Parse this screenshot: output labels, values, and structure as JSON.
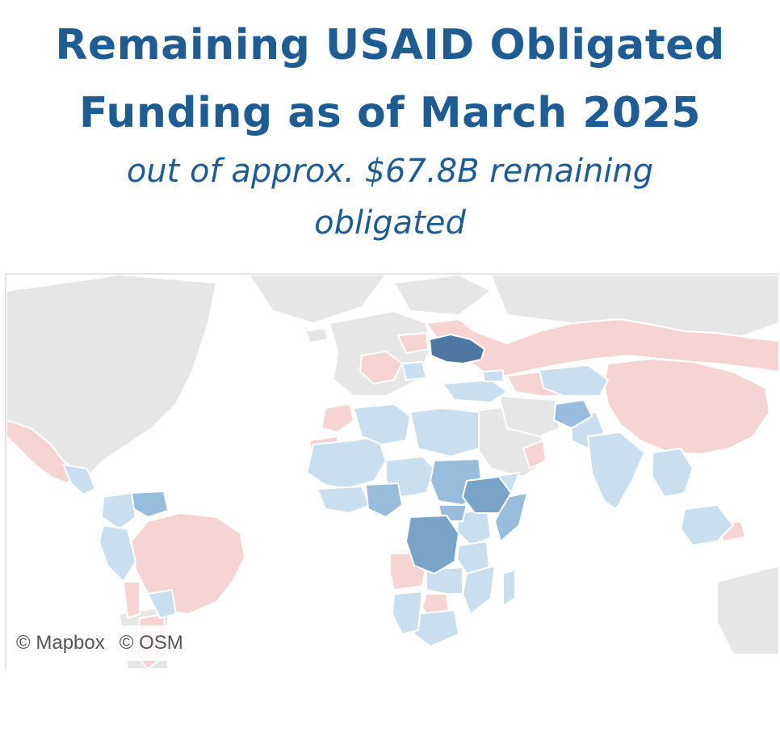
{
  "title": {
    "line1": "Remaining USAID Obligated",
    "line2": "Funding as of March 2025"
  },
  "subtitle": {
    "line1": "out of approx. $67.8B  remaining",
    "line2": "obligated"
  },
  "map": {
    "colors": {
      "land_base": "#e6e6e6",
      "no_funding": "#f6d4d4",
      "low": "#c9dff0",
      "medium": "#97bcdc",
      "high": "#7aa3c8",
      "highest": "#4f77a3",
      "border": "#ffffff"
    },
    "highlighted_countries": [
      {
        "name": "Ukraine",
        "level": "highest"
      },
      {
        "name": "Ethiopia",
        "level": "high"
      },
      {
        "name": "Democratic Republic of the Congo",
        "level": "high"
      },
      {
        "name": "Sudan",
        "level": "medium"
      },
      {
        "name": "Nigeria",
        "level": "medium"
      },
      {
        "name": "Venezuela",
        "level": "medium"
      },
      {
        "name": "Afghanistan",
        "level": "medium"
      }
    ],
    "no_funding_countries": [
      "China",
      "Russia",
      "Brazil",
      "Mexico",
      "Angola",
      "Botswana",
      "Saudi Arabia",
      "Morocco"
    ]
  },
  "attribution": {
    "mapbox": "© Mapbox",
    "osm": "© OSM"
  }
}
